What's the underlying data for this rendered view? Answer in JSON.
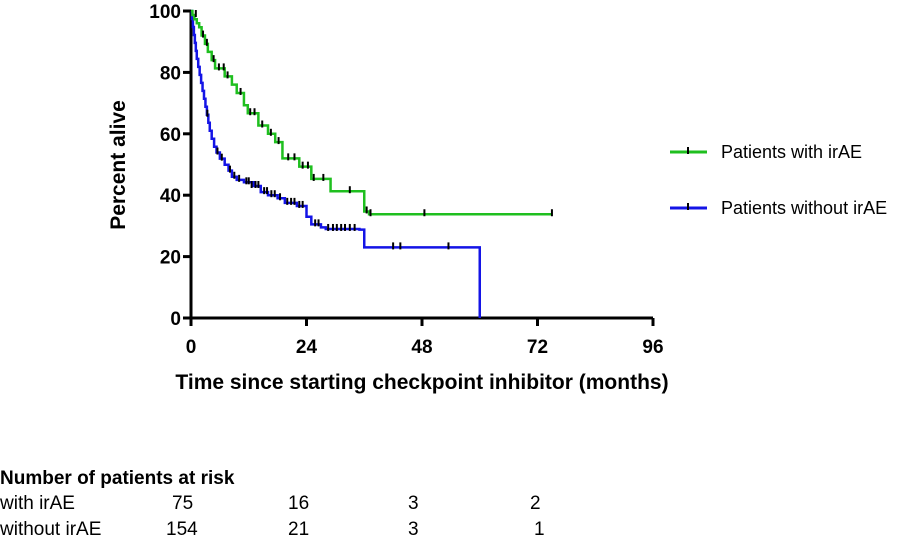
{
  "chart_data": {
    "type": "line",
    "subtype": "kaplan-meier",
    "title": "",
    "xlabel": "Time since starting checkpoint inhibitor (months)",
    "ylabel": "Percent alive",
    "xlim": [
      0,
      96
    ],
    "ylim": [
      0,
      100
    ],
    "xticks": [
      0,
      24,
      48,
      72,
      96
    ],
    "yticks": [
      0,
      20,
      40,
      60,
      80,
      100
    ],
    "grid": false,
    "legend_position": "right",
    "series": [
      {
        "name": "Patients with irAE",
        "color": "#1fbf1f",
        "steps": [
          [
            0,
            100
          ],
          [
            0.3,
            98.7
          ],
          [
            0.7,
            97.3
          ],
          [
            1.2,
            96
          ],
          [
            1.7,
            94.7
          ],
          [
            2.2,
            92
          ],
          [
            2.9,
            89.3
          ],
          [
            3.5,
            86.7
          ],
          [
            4.3,
            84
          ],
          [
            5,
            81.3
          ],
          [
            7,
            78.7
          ],
          [
            8.5,
            76
          ],
          [
            9.5,
            73.3
          ],
          [
            11,
            69.3
          ],
          [
            11.8,
            66.7
          ],
          [
            14,
            62.7
          ],
          [
            16,
            60
          ],
          [
            17.5,
            57.3
          ],
          [
            19,
            52
          ],
          [
            22.5,
            49.3
          ],
          [
            25,
            45.3
          ],
          [
            29,
            41.3
          ],
          [
            36,
            34.7
          ],
          [
            37,
            33.8
          ],
          [
            75,
            33.8
          ]
        ],
        "censor": [
          [
            1,
            98.7
          ],
          [
            2.5,
            92
          ],
          [
            3.3,
            89.3
          ],
          [
            4.7,
            84
          ],
          [
            5.8,
            81.3
          ],
          [
            6.8,
            81.3
          ],
          [
            7.6,
            78.7
          ],
          [
            10.3,
            73.3
          ],
          [
            12.3,
            66.7
          ],
          [
            13.2,
            66.7
          ],
          [
            14.8,
            62.7
          ],
          [
            16.6,
            60
          ],
          [
            18.2,
            57.3
          ],
          [
            20.2,
            52
          ],
          [
            21.5,
            52
          ],
          [
            23.2,
            49.3
          ],
          [
            24.3,
            49.3
          ],
          [
            25.5,
            45.3
          ],
          [
            27.5,
            45.3
          ],
          [
            33,
            41.3
          ],
          [
            36.5,
            34.7
          ],
          [
            37.3,
            33.8
          ],
          [
            48.5,
            33.8
          ],
          [
            75,
            33.8
          ]
        ]
      },
      {
        "name": "Patients without irAE",
        "color": "#1414e6",
        "steps": [
          [
            0,
            100
          ],
          [
            0.2,
            97.4
          ],
          [
            0.4,
            94.8
          ],
          [
            0.6,
            92.2
          ],
          [
            0.8,
            89.6
          ],
          [
            1,
            87
          ],
          [
            1.2,
            84.4
          ],
          [
            1.5,
            81.8
          ],
          [
            1.8,
            79.2
          ],
          [
            2.1,
            76.6
          ],
          [
            2.4,
            74
          ],
          [
            2.7,
            71.4
          ],
          [
            3,
            68.8
          ],
          [
            3.3,
            66.2
          ],
          [
            3.6,
            63.6
          ],
          [
            3.9,
            61
          ],
          [
            4.3,
            58.4
          ],
          [
            4.8,
            55.8
          ],
          [
            5.3,
            53.9
          ],
          [
            6,
            51.9
          ],
          [
            7,
            49.9
          ],
          [
            7.8,
            48
          ],
          [
            8.5,
            46
          ],
          [
            9.5,
            45
          ],
          [
            11,
            44.2
          ],
          [
            13,
            43
          ],
          [
            14.5,
            41
          ],
          [
            16,
            40
          ],
          [
            18,
            39
          ],
          [
            19.5,
            37.5
          ],
          [
            22,
            36.5
          ],
          [
            24,
            33
          ],
          [
            25,
            30.5
          ],
          [
            27,
            29.5
          ],
          [
            28,
            29
          ],
          [
            35,
            28.8
          ],
          [
            36,
            23
          ],
          [
            60,
            23
          ],
          [
            60,
            0
          ]
        ],
        "censor": [
          [
            3.4,
            66.2
          ],
          [
            5.5,
            53.9
          ],
          [
            6.4,
            51.9
          ],
          [
            8.1,
            48
          ],
          [
            9,
            46
          ],
          [
            10,
            45
          ],
          [
            11.5,
            44.2
          ],
          [
            12,
            44.2
          ],
          [
            12.6,
            43
          ],
          [
            13.4,
            43
          ],
          [
            14,
            43
          ],
          [
            15.2,
            41
          ],
          [
            15.8,
            41
          ],
          [
            16.7,
            40
          ],
          [
            17.4,
            40
          ],
          [
            18.5,
            39
          ],
          [
            20,
            37.5
          ],
          [
            20.8,
            37.5
          ],
          [
            21.5,
            37.5
          ],
          [
            22.5,
            36.5
          ],
          [
            23.2,
            36.5
          ],
          [
            25.8,
            30.5
          ],
          [
            26.5,
            30.5
          ],
          [
            28.5,
            29
          ],
          [
            29.5,
            29
          ],
          [
            30.3,
            29
          ],
          [
            31.2,
            29
          ],
          [
            32,
            29
          ],
          [
            33,
            29
          ],
          [
            34,
            29
          ],
          [
            42,
            23
          ],
          [
            43.5,
            23
          ],
          [
            53.5,
            23
          ]
        ]
      }
    ],
    "risk_table": {
      "title": "Number of patients at risk",
      "rows": [
        {
          "label": "with irAE",
          "values": [
            "75",
            "16",
            "3",
            "2"
          ]
        },
        {
          "label": "without irAE",
          "values": [
            "154",
            "21",
            "3",
            "1"
          ]
        }
      ]
    }
  }
}
